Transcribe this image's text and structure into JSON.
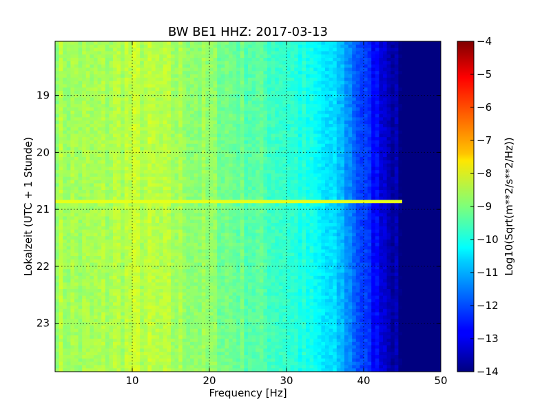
{
  "chart_data": {
    "type": "heatmap",
    "title": "BW BE1 HHZ: 2017-03-13",
    "xlabel": "Frequency [Hz]",
    "ylabel": "Lokalzeit (UTC + 1 Stunde)",
    "xlim": [
      0,
      50
    ],
    "ylim": [
      18.05,
      23.85
    ],
    "y_inverted": true,
    "x_ticks": [
      10,
      20,
      30,
      40,
      50
    ],
    "y_ticks": [
      19,
      20,
      21,
      22,
      23
    ],
    "grid": true,
    "colorbar": {
      "label": "Log10(Sqrt(m**2/s**2/Hz))",
      "range": [
        -14,
        -4
      ],
      "ticks": [
        -4,
        -5,
        -6,
        -7,
        -8,
        -9,
        -10,
        -11,
        -12,
        -13,
        -14
      ],
      "colormap": "jet"
    },
    "spectrum_profile": [
      {
        "freq": 0,
        "value": -8.6
      },
      {
        "freq": 5,
        "value": -8.7
      },
      {
        "freq": 10,
        "value": -8.4
      },
      {
        "freq": 15,
        "value": -8.6
      },
      {
        "freq": 20,
        "value": -8.9
      },
      {
        "freq": 25,
        "value": -9.3
      },
      {
        "freq": 30,
        "value": -9.7
      },
      {
        "freq": 34,
        "value": -10.3
      },
      {
        "freq": 37,
        "value": -10.9
      },
      {
        "freq": 40,
        "value": -12.2
      },
      {
        "freq": 43,
        "value": -13.2
      },
      {
        "freq": 45,
        "value": -14.0
      },
      {
        "freq": 50,
        "value": -14.0
      }
    ],
    "events": [
      {
        "time": 20.88,
        "freq_min": 0,
        "freq_max": 45.5,
        "value": -8.0
      }
    ]
  }
}
